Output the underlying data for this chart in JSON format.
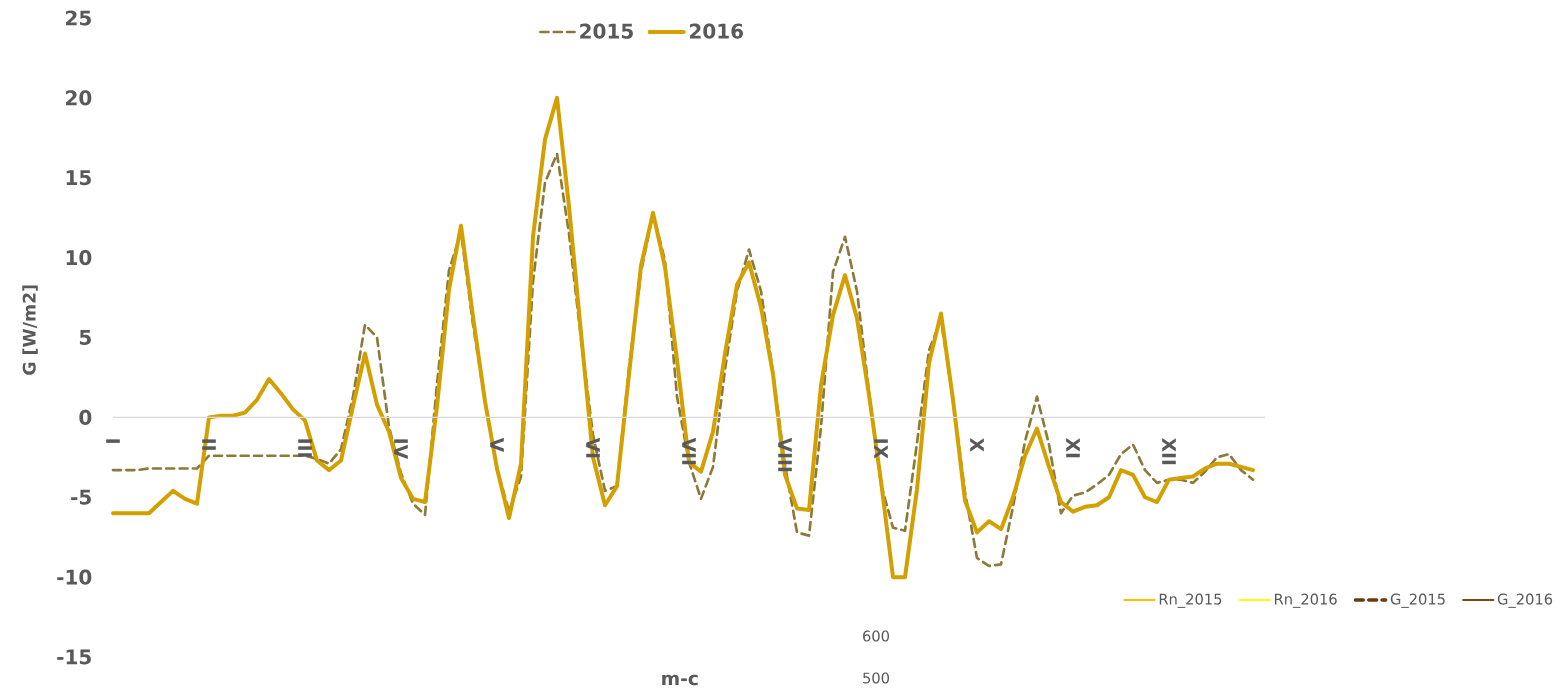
{
  "chart_data": {
    "type": "line",
    "xlabel": "m-c",
    "ylabel": "G [W/m2]",
    "categories": [
      "I",
      null,
      null,
      null,
      null,
      null,
      null,
      null,
      "II",
      null,
      null,
      null,
      null,
      null,
      null,
      null,
      "III",
      null,
      null,
      null,
      null,
      null,
      null,
      null,
      "IV",
      null,
      null,
      null,
      null,
      null,
      null,
      null,
      "V",
      null,
      null,
      null,
      null,
      null,
      null,
      null,
      "VI",
      null,
      null,
      null,
      null,
      null,
      null,
      null,
      "VII",
      null,
      null,
      null,
      null,
      null,
      null,
      null,
      "VIII",
      null,
      null,
      null,
      null,
      null,
      null,
      null,
      "IX",
      null,
      null,
      null,
      null,
      null,
      null,
      null,
      "X",
      null,
      null,
      null,
      null,
      null,
      null,
      null,
      "XI",
      null,
      null,
      null,
      null,
      null,
      null,
      null,
      "XII",
      null,
      null,
      null,
      null,
      null,
      null,
      null
    ],
    "ylim": [
      -15,
      25
    ],
    "yticks": [
      -15,
      -10,
      -5,
      0,
      5,
      10,
      15,
      20,
      25
    ],
    "legend": "top",
    "marker": "none",
    "annotations": [
      "600",
      "500"
    ],
    "series": [
      {
        "name": "2015",
        "color": "#8c7a3a",
        "line_style": "dashed",
        "values": [
          -3.3,
          -3.3,
          -3.3,
          -3.2,
          -3.2,
          -3.2,
          -3.2,
          -3.2,
          -2.4,
          -2.4,
          -2.4,
          -2.4,
          -2.4,
          -2.4,
          -2.4,
          -2.4,
          -2.4,
          -2.6,
          -2.9,
          -2.0,
          1.3,
          5.8,
          5.0,
          -0.6,
          -3.5,
          -5.4,
          -6.1,
          2.1,
          9.2,
          11.6,
          5.8,
          1.0,
          -3.2,
          -5.9,
          -3.7,
          8.5,
          14.7,
          16.5,
          11.5,
          4.9,
          -1.1,
          -4.6,
          -4.3,
          3.1,
          9.1,
          12.8,
          9.8,
          1.3,
          -2.8,
          -5.1,
          -3.1,
          3.0,
          7.9,
          10.5,
          7.9,
          2.8,
          -3.0,
          -7.2,
          -7.4,
          -0.6,
          9.1,
          11.3,
          7.9,
          1.6,
          -4.2,
          -6.9,
          -7.1,
          -1.6,
          4.2,
          6.1,
          1.1,
          -4.7,
          -8.8,
          -9.3,
          -9.2,
          -5.6,
          -1.5,
          1.3,
          -1.7,
          -6.0,
          -4.9,
          -4.7,
          -4.2,
          -3.6,
          -2.3,
          -1.7,
          -3.3,
          -4.1,
          -3.9,
          -3.9,
          -4.1,
          -3.4,
          -2.5,
          -2.3,
          -3.3,
          -3.9
        ]
      },
      {
        "name": "2016",
        "color": "#d4a000",
        "line_style": "solid",
        "values": [
          -6.0,
          -6.0,
          -6.0,
          -6.0,
          -5.3,
          -4.6,
          -5.1,
          -5.4,
          0,
          0.1,
          0.1,
          0.3,
          1.1,
          2.4,
          1.5,
          0.5,
          -0.2,
          -2.7,
          -3.3,
          -2.7,
          0.7,
          4.0,
          0.8,
          -0.9,
          -3.8,
          -5.1,
          -5.3,
          0.7,
          8.0,
          12.0,
          6.3,
          1.0,
          -3.2,
          -6.3,
          -2.9,
          11.3,
          17.4,
          20.0,
          13.2,
          5.3,
          -2.5,
          -5.5,
          -4.3,
          2.7,
          9.5,
          12.8,
          9.4,
          3.6,
          -2.8,
          -3.4,
          -0.9,
          4.0,
          8.3,
          9.7,
          6.9,
          2.7,
          -3.6,
          -5.7,
          -5.8,
          2.0,
          6.4,
          8.9,
          6.2,
          1.4,
          -4.0,
          -10,
          -10,
          -4.5,
          3.4,
          6.5,
          1.1,
          -5.2,
          -7.2,
          -6.5,
          -7.0,
          -5.0,
          -2.4,
          -0.7,
          -3.1,
          -5.3,
          -5.9,
          -5.6,
          -5.5,
          -5.0,
          -3.3,
          -3.6,
          -5.0,
          -5.3,
          -3.9,
          -3.8,
          -3.7,
          -3.2,
          -2.9,
          -2.9,
          -3.1,
          -3.3
        ]
      },
      {
        "name": "Rn_2015",
        "color": "#ffc000",
        "line_style": "solid",
        "values": [
          null,
          null,
          null,
          null,
          null,
          null,
          null,
          null,
          null,
          null,
          null,
          null,
          null,
          null,
          null,
          null,
          null,
          null,
          null,
          null,
          null,
          null,
          null,
          null,
          null,
          null,
          null,
          null,
          null,
          null,
          null,
          null,
          null,
          null,
          null,
          null,
          null,
          null,
          null,
          null,
          null,
          null,
          null,
          null,
          null,
          null,
          null,
          null,
          null,
          null,
          null,
          null,
          null,
          null,
          null,
          null,
          null,
          null,
          null,
          null,
          null,
          null,
          null,
          null,
          null,
          null,
          null,
          null,
          null,
          null,
          null,
          null,
          null,
          null,
          null,
          null,
          null,
          null,
          null,
          null,
          null,
          null,
          null,
          null,
          null,
          null,
          null,
          null,
          null,
          null,
          null,
          null,
          null,
          null,
          null,
          null
        ]
      },
      {
        "name": "Rn_2016",
        "color": "#ffff00",
        "line_style": "solid",
        "values": [
          null,
          null,
          null,
          null,
          null,
          null,
          null,
          null,
          null,
          null,
          null,
          null,
          null,
          null,
          null,
          null,
          null,
          null,
          null,
          null,
          null,
          null,
          null,
          null,
          null,
          null,
          null,
          null,
          null,
          null,
          null,
          null,
          null,
          null,
          null,
          null,
          null,
          null,
          null,
          null,
          null,
          null,
          null,
          null,
          null,
          null,
          null,
          null,
          null,
          null,
          null,
          null,
          null,
          null,
          null,
          null,
          null,
          null,
          null,
          null,
          null,
          null,
          null,
          null,
          null,
          null,
          null,
          null,
          null,
          null,
          null,
          null,
          null,
          null,
          null,
          null,
          null,
          null,
          null,
          null,
          null,
          null,
          null,
          null,
          null,
          null,
          null,
          null,
          null,
          null,
          null,
          null,
          null,
          null,
          null,
          null
        ]
      },
      {
        "name": "G_2015",
        "color": "#6b3a0b",
        "line_style": "dashed",
        "values": [
          null,
          null,
          null,
          null,
          null,
          null,
          null,
          null,
          null,
          null,
          null,
          null,
          null,
          null,
          null,
          null,
          null,
          null,
          null,
          null,
          null,
          null,
          null,
          null,
          null,
          null,
          null,
          null,
          null,
          null,
          null,
          null,
          null,
          null,
          null,
          null,
          null,
          null,
          null,
          null,
          null,
          null,
          null,
          null,
          null,
          null,
          null,
          null,
          null,
          null,
          null,
          null,
          null,
          null,
          null,
          null,
          null,
          null,
          null,
          null,
          null,
          null,
          null,
          null,
          null,
          null,
          null,
          null,
          null,
          null,
          null,
          null,
          null,
          null,
          null,
          null,
          null,
          null,
          null,
          null,
          null,
          null,
          null,
          null,
          null,
          null,
          null,
          null,
          null,
          null,
          null,
          null,
          null,
          null,
          null,
          null
        ]
      },
      {
        "name": "G_2016",
        "color": "#7b4a12",
        "line_style": "solid",
        "values": [
          null,
          null,
          null,
          null,
          null,
          null,
          null,
          null,
          null,
          null,
          null,
          null,
          null,
          null,
          null,
          null,
          null,
          null,
          null,
          null,
          null,
          null,
          null,
          null,
          null,
          null,
          null,
          null,
          null,
          null,
          null,
          null,
          null,
          null,
          null,
          null,
          null,
          null,
          null,
          null,
          null,
          null,
          null,
          null,
          null,
          null,
          null,
          null,
          null,
          null,
          null,
          null,
          null,
          null,
          null,
          null,
          null,
          null,
          null,
          null,
          null,
          null,
          null,
          null,
          null,
          null,
          null,
          null,
          null,
          null,
          null,
          null,
          null,
          null,
          null,
          null,
          null,
          null,
          null,
          null,
          null,
          null,
          null,
          null,
          null,
          null,
          null,
          null,
          null,
          null,
          null,
          null,
          null,
          null,
          null,
          null
        ]
      }
    ]
  }
}
